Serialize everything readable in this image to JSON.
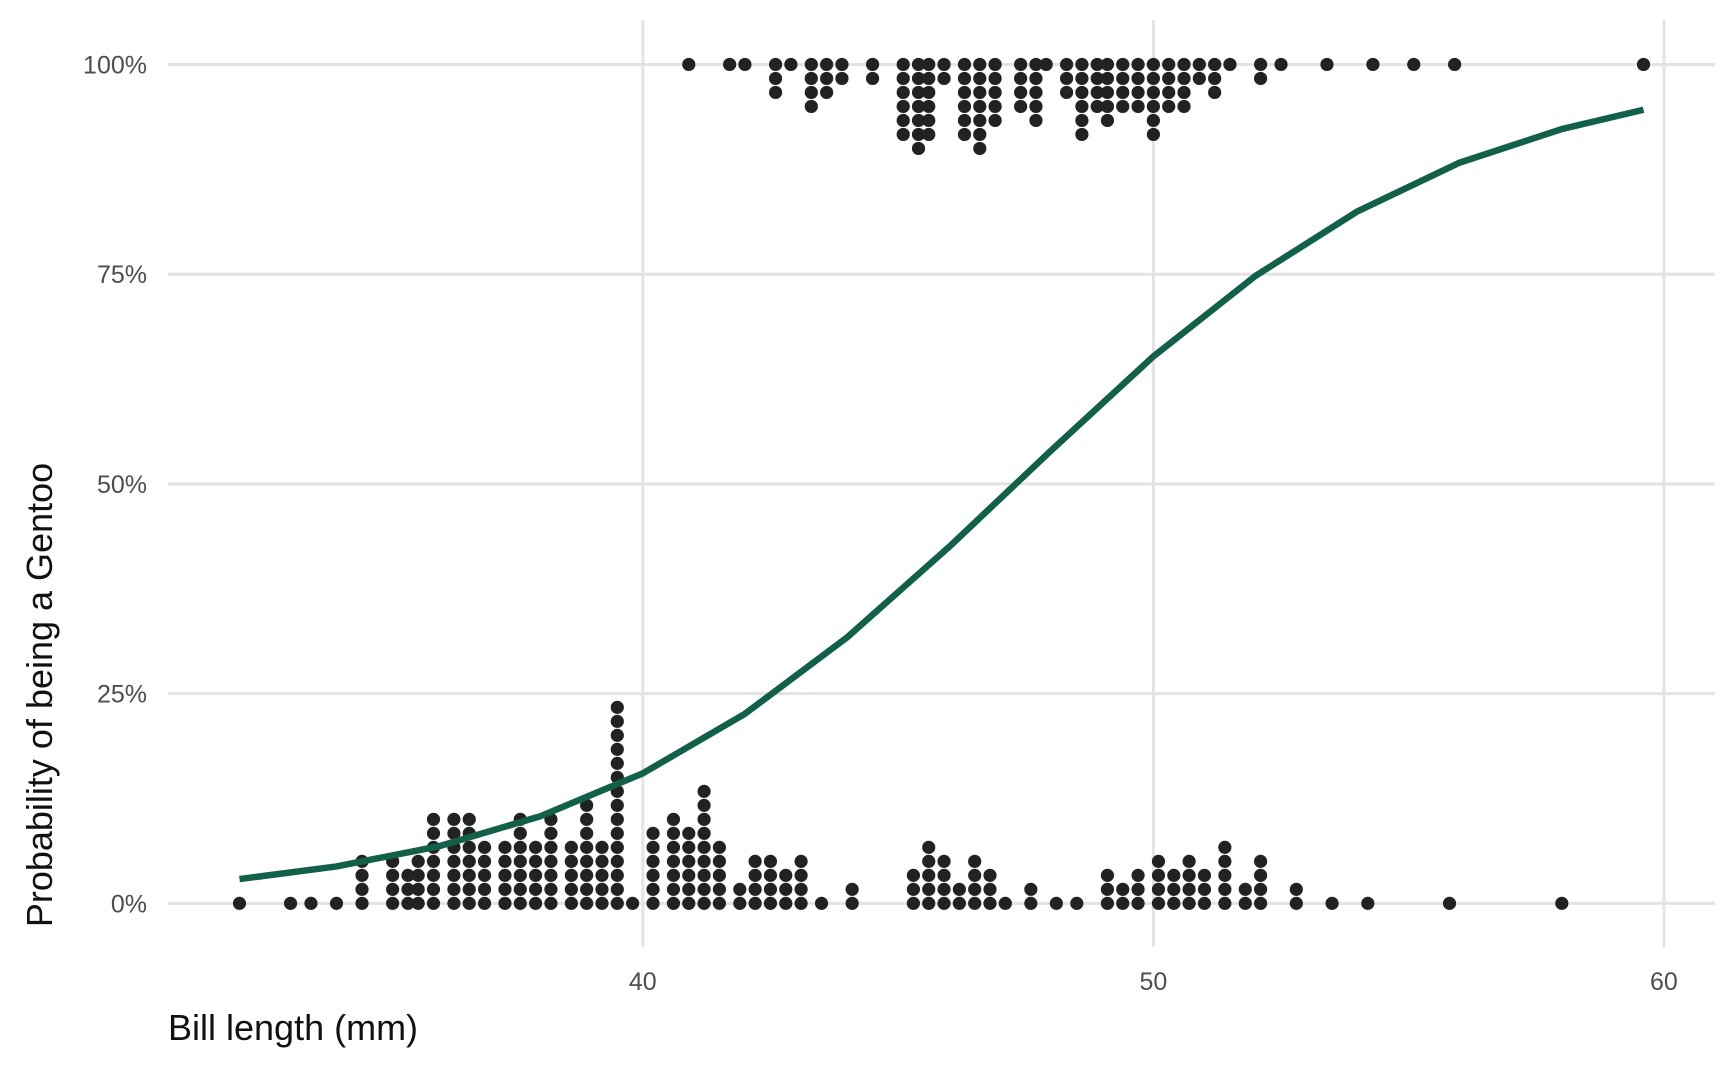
{
  "chart_data": {
    "type": "line",
    "xlabel": "Bill length (mm)",
    "ylabel": "Probability of being a Gentoo",
    "xlim": [
      30.7,
      61
    ],
    "xticks": [
      40,
      50,
      60
    ],
    "ylim": [
      -5.2,
      105.3
    ],
    "yticks": [
      {
        "value": 0,
        "label": "0%"
      },
      {
        "value": 25,
        "label": "25%"
      },
      {
        "value": 50,
        "label": "50%"
      },
      {
        "value": 75,
        "label": "75%"
      },
      {
        "value": 100,
        "label": "100%"
      }
    ],
    "grid": true,
    "x": [
      32.1,
      34,
      36,
      38,
      40,
      42,
      44,
      46,
      48,
      50,
      52,
      54,
      56,
      58,
      59.6
    ],
    "series": [
      {
        "color": "#13604a",
        "values": [
          2.9,
          4.4,
          6.8,
          10.4,
          15.5,
          22.6,
          31.7,
          42.5,
          54.0,
          65.2,
          74.8,
          82.5,
          88.3,
          92.3,
          94.6
        ]
      }
    ],
    "dots": [
      {
        "y": 0,
        "stack": "up",
        "color": "#222222",
        "x": [
          32.1,
          33.1,
          33.5,
          34.0,
          34.5,
          35.1,
          35.4,
          35.6,
          35.9,
          36.3,
          36.6,
          36.9,
          37.3,
          37.6,
          37.9,
          38.2,
          38.6,
          38.9,
          39.2,
          39.5,
          39.8,
          40.2,
          40.6,
          40.9,
          41.2,
          41.5,
          41.9,
          42.2,
          42.5,
          42.8,
          43.1,
          43.5,
          44.1,
          45.3,
          45.6,
          45.9,
          46.2,
          46.5,
          46.8,
          47.1,
          47.6,
          48.1,
          48.5,
          49.1,
          49.4,
          49.7,
          50.1,
          50.4,
          50.7,
          51.0,
          51.4,
          51.8,
          52.1,
          52.8,
          53.5,
          54.2,
          55.8,
          58.0
        ],
        "counts": [
          1,
          1,
          1,
          1,
          4,
          4,
          3,
          4,
          7,
          7,
          7,
          5,
          5,
          7,
          5,
          7,
          5,
          8,
          5,
          15,
          1,
          6,
          7,
          6,
          9,
          5,
          2,
          4,
          4,
          3,
          4,
          1,
          2,
          3,
          5,
          4,
          2,
          4,
          3,
          1,
          2,
          1,
          1,
          3,
          2,
          3,
          4,
          3,
          4,
          3,
          5,
          2,
          4,
          2,
          1,
          1,
          1,
          1
        ]
      },
      {
        "y": 100,
        "stack": "down",
        "color": "#222222",
        "x": [
          40.9,
          41.7,
          42.0,
          42.6,
          42.9,
          43.3,
          43.6,
          43.9,
          44.5,
          45.1,
          45.4,
          45.6,
          45.9,
          46.3,
          46.6,
          46.9,
          47.4,
          47.7,
          47.9,
          48.3,
          48.6,
          48.9,
          49.1,
          49.4,
          49.7,
          50.0,
          50.3,
          50.6,
          50.9,
          51.2,
          51.5,
          52.1,
          52.5,
          53.4,
          54.3,
          55.1,
          55.9,
          59.6
        ],
        "counts": [
          1,
          1,
          1,
          3,
          1,
          4,
          3,
          2,
          2,
          6,
          7,
          6,
          2,
          6,
          7,
          5,
          4,
          5,
          1,
          3,
          6,
          4,
          5,
          4,
          4,
          6,
          4,
          4,
          2,
          3,
          1,
          2,
          1,
          1,
          1,
          1,
          1,
          1
        ]
      }
    ]
  }
}
